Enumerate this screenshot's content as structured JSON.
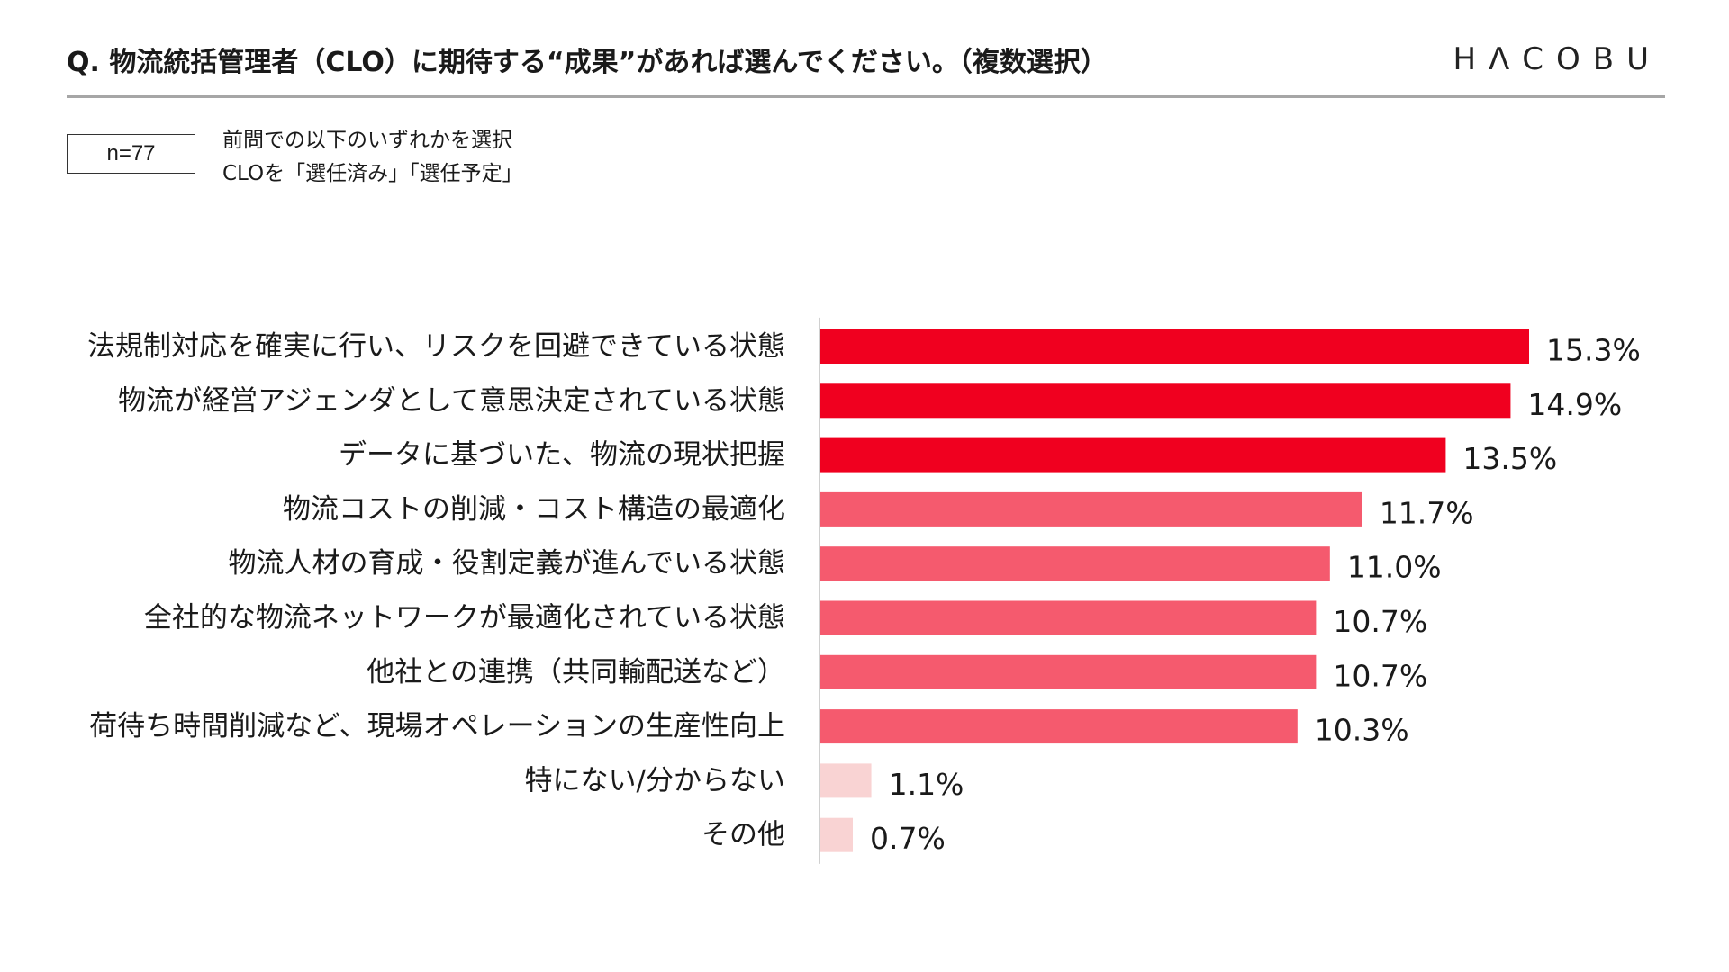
{
  "header": {
    "question": "Q.  物流統括管理者（CLO）に期待する“成果”があれば選んでください。（複数選択）",
    "logo_text": "HΛCOBU"
  },
  "sample": {
    "n_label": "n=77",
    "note_line1": "前問での以下のいずれかを選択",
    "note_line2": "CLOを「選任済み」「選任予定」"
  },
  "colors": {
    "dark_red": "#f0001f",
    "mid_red": "#f55a6e",
    "light_pink": "#f9d3d3",
    "axis": "#d0d0d0",
    "rule": "#a6a6a6"
  },
  "chart_data": {
    "type": "bar",
    "orientation": "horizontal",
    "unit": "%",
    "xlim": [
      0,
      15.3
    ],
    "grid": false,
    "legend": "none",
    "categories": [
      "法規制対応を確実に行い、リスクを回避できている状態",
      "物流が経営アジェンダとして意思決定されている状態",
      "データに基づいた、物流の現状把握",
      "物流コストの削減・コスト構造の最適化",
      "物流人材の育成・役割定義が進んでいる状態",
      "全社的な物流ネットワークが最適化されている状態",
      "他社との連携（共同輸配送など）",
      "荷待ち時間削減など、現場オペレーションの生産性向上",
      "特にない/分からない",
      "その他"
    ],
    "values": [
      15.3,
      14.9,
      13.5,
      11.7,
      11.0,
      10.7,
      10.7,
      10.3,
      1.1,
      0.7
    ],
    "value_labels": [
      "15.3%",
      "14.9%",
      "13.5%",
      "11.7%",
      "11.0%",
      "10.7%",
      "10.7%",
      "10.3%",
      "1.1%",
      "0.7%"
    ],
    "bar_color_groups": [
      "dark_red",
      "dark_red",
      "dark_red",
      "mid_red",
      "mid_red",
      "mid_red",
      "mid_red",
      "mid_red",
      "light_pink",
      "light_pink"
    ]
  }
}
